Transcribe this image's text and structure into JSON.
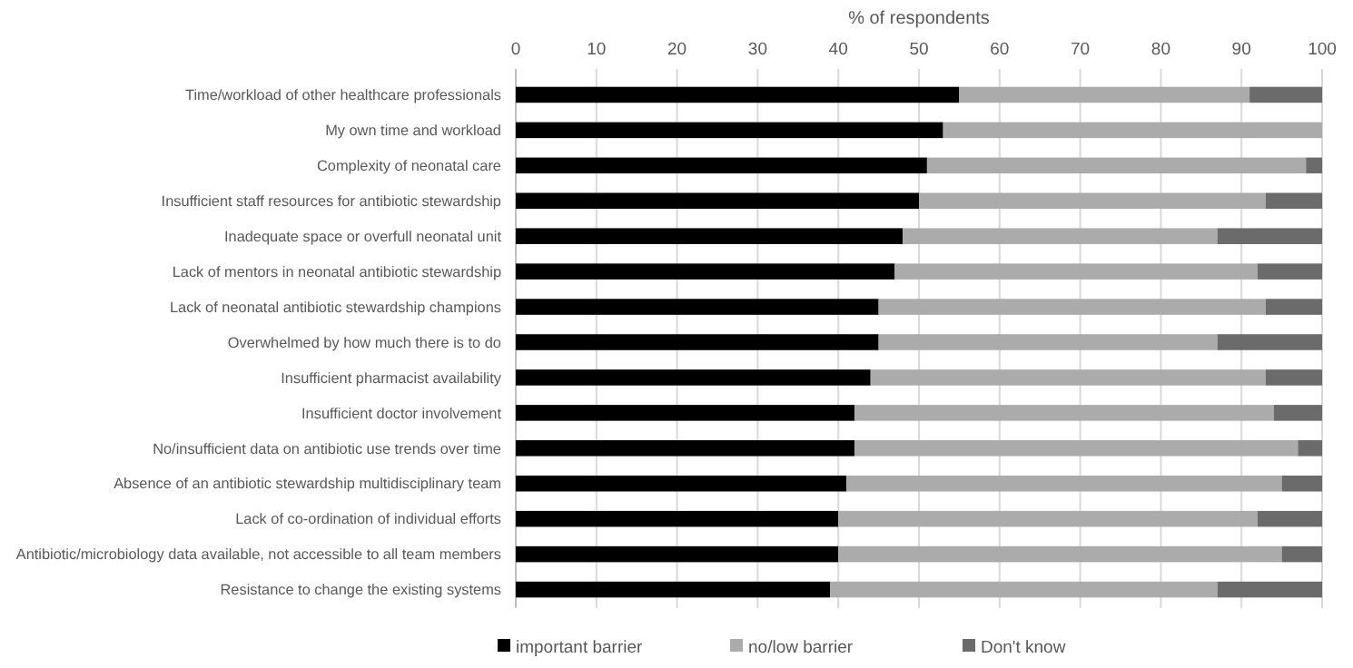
{
  "chart_data": {
    "type": "bar",
    "orientation": "horizontal",
    "stacked": true,
    "xlabel": "% of respondents",
    "categories": [
      "Time/workload of other healthcare professionals",
      "My own time and workload",
      "Complexity of neonatal care",
      "Insufficient staff resources for antibiotic stewardship",
      "Inadequate space or overfull neonatal unit",
      "Lack of mentors in neonatal antibiotic stewardship",
      "Lack of neonatal antibiotic stewardship champions",
      "Overwhelmed by how much there is to do",
      "Insufficient pharmacist availability",
      "Insufficient doctor involvement",
      "No/insufficient data on antibiotic use trends over time",
      "Absence of an antibiotic stewardship multidisciplinary team",
      "Lack of co-ordination of individual efforts",
      "Antibiotic/microbiology data available, not accessible to all team members",
      "Resistance to change the existing systems"
    ],
    "series": [
      {
        "name": "important barrier",
        "color": "#000000",
        "values": [
          55,
          53,
          51,
          50,
          48,
          47,
          45,
          45,
          44,
          42,
          42,
          41,
          40,
          40,
          39
        ]
      },
      {
        "name": "no/low barrier",
        "color": "#ababab",
        "values": [
          36,
          47,
          47,
          43,
          39,
          45,
          48,
          42,
          49,
          52,
          55,
          54,
          52,
          55,
          48
        ]
      },
      {
        "name": "Don't know",
        "color": "#6b6b6b",
        "values": [
          9,
          0,
          2,
          7,
          13,
          8,
          7,
          13,
          7,
          6,
          3,
          5,
          8,
          5,
          13
        ]
      }
    ],
    "xlim": [
      0,
      100
    ],
    "xticks": [
      0,
      10,
      20,
      30,
      40,
      50,
      60,
      70,
      80,
      90,
      100
    ],
    "grid": "x",
    "legend": "bottom"
  }
}
